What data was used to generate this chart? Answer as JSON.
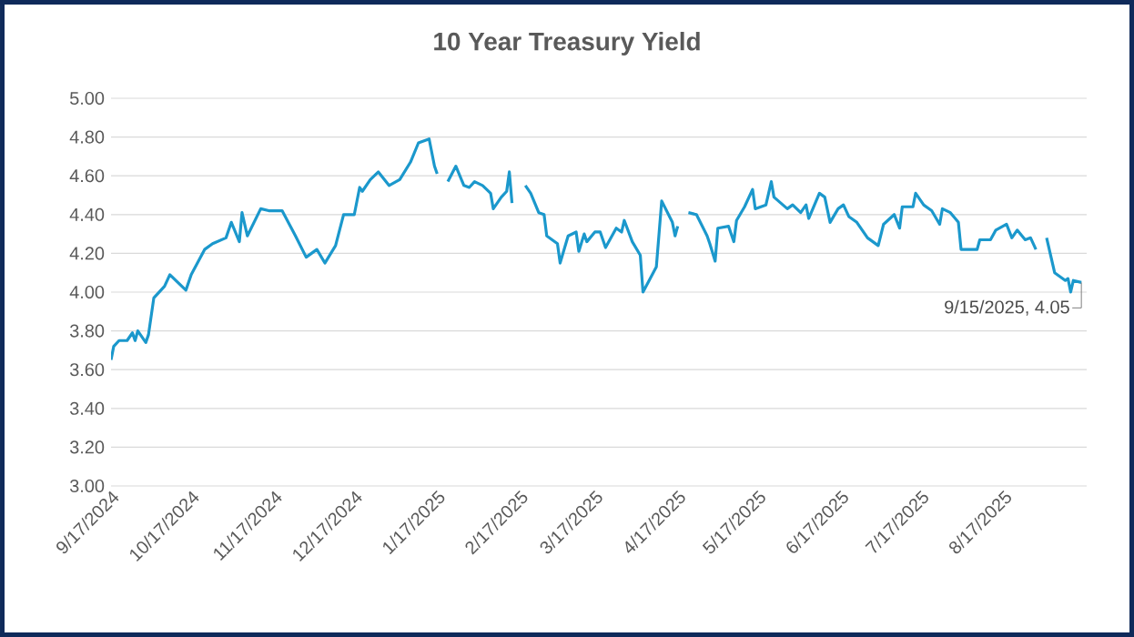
{
  "chart_data": {
    "type": "line",
    "title": "10 Year Treasury Yield",
    "x": [
      "2024-09-17",
      "2024-09-18",
      "2024-09-20",
      "2024-09-23",
      "2024-09-25",
      "2024-09-26",
      "2024-09-27",
      "2024-09-30",
      "2024-10-01",
      "2024-10-03",
      "2024-10-07",
      "2024-10-09",
      "2024-10-15",
      "2024-10-17",
      "2024-10-22",
      "2024-10-25",
      "2024-10-30",
      "2024-11-01",
      "2024-11-04",
      "2024-11-05",
      "2024-11-07",
      "2024-11-12",
      "2024-11-15",
      "2024-11-20",
      "2024-11-25",
      "2024-11-29",
      "2024-12-03",
      "2024-12-06",
      "2024-12-10",
      "2024-12-13",
      "2024-12-17",
      "2024-12-19",
      "2024-12-20",
      "2024-12-23",
      "2024-12-26",
      "2024-12-30",
      "2025-01-03",
      "2025-01-07",
      "2025-01-10",
      "2025-01-14",
      "2025-01-16",
      "2025-01-17",
      "2025-01-20",
      "2025-01-21",
      "2025-01-24",
      "2025-01-27",
      "2025-01-29",
      "2025-01-31",
      "2025-02-03",
      "2025-02-06",
      "2025-02-07",
      "2025-02-10",
      "2025-02-12",
      "2025-02-13",
      "2025-02-14",
      "2025-02-17",
      "2025-02-19",
      "2025-02-21",
      "2025-02-24",
      "2025-02-26",
      "2025-02-27",
      "2025-03-03",
      "2025-03-04",
      "2025-03-07",
      "2025-03-10",
      "2025-03-11",
      "2025-03-13",
      "2025-03-14",
      "2025-03-17",
      "2025-03-19",
      "2025-03-21",
      "2025-03-25",
      "2025-03-27",
      "2025-03-28",
      "2025-03-31",
      "2025-04-03",
      "2025-04-04",
      "2025-04-09",
      "2025-04-11",
      "2025-04-15",
      "2025-04-16",
      "2025-04-17",
      "2025-04-18",
      "2025-04-21",
      "2025-04-24",
      "2025-04-28",
      "2025-04-29",
      "2025-05-01",
      "2025-05-02",
      "2025-05-06",
      "2025-05-08",
      "2025-05-09",
      "2025-05-12",
      "2025-05-15",
      "2025-05-16",
      "2025-05-20",
      "2025-05-22",
      "2025-05-23",
      "2025-05-28",
      "2025-05-30",
      "2025-06-02",
      "2025-06-04",
      "2025-06-05",
      "2025-06-09",
      "2025-06-11",
      "2025-06-13",
      "2025-06-16",
      "2025-06-18",
      "2025-06-20",
      "2025-06-23",
      "2025-06-27",
      "2025-07-01",
      "2025-07-03",
      "2025-07-07",
      "2025-07-09",
      "2025-07-10",
      "2025-07-14",
      "2025-07-15",
      "2025-07-18",
      "2025-07-21",
      "2025-07-24",
      "2025-07-25",
      "2025-07-28",
      "2025-07-31",
      "2025-08-01",
      "2025-08-07",
      "2025-08-08",
      "2025-08-12",
      "2025-08-14",
      "2025-08-18",
      "2025-08-20",
      "2025-08-22",
      "2025-08-25",
      "2025-08-27",
      "2025-08-29",
      "2025-09-01",
      "2025-09-02",
      "2025-09-05",
      "2025-09-09",
      "2025-09-10",
      "2025-09-11",
      "2025-09-12",
      "2025-09-15"
    ],
    "series": [
      {
        "color": "#1b98cc",
        "values": [
          3.65,
          3.72,
          3.75,
          3.75,
          3.79,
          3.75,
          3.8,
          3.74,
          3.78,
          3.97,
          4.03,
          4.09,
          4.01,
          4.09,
          4.22,
          4.25,
          4.28,
          4.36,
          4.26,
          4.41,
          4.29,
          4.43,
          4.42,
          4.42,
          4.29,
          4.18,
          4.22,
          4.15,
          4.24,
          4.4,
          4.4,
          4.54,
          4.52,
          4.58,
          4.62,
          4.55,
          4.58,
          4.67,
          4.77,
          4.79,
          4.65,
          4.61,
          null,
          4.57,
          4.65,
          4.55,
          4.54,
          4.57,
          4.55,
          4.51,
          4.43,
          4.49,
          4.52,
          4.62,
          4.46,
          null,
          4.55,
          4.51,
          4.41,
          4.4,
          4.29,
          4.25,
          4.15,
          4.29,
          4.31,
          4.21,
          4.3,
          4.26,
          4.31,
          4.31,
          4.23,
          4.33,
          4.31,
          4.37,
          4.26,
          4.19,
          4.0,
          4.13,
          4.47,
          4.36,
          4.29,
          4.34,
          null,
          4.41,
          4.4,
          4.29,
          4.25,
          4.16,
          4.33,
          4.34,
          4.26,
          4.37,
          4.44,
          4.53,
          4.43,
          4.45,
          4.57,
          4.49,
          4.43,
          4.45,
          4.41,
          4.45,
          4.38,
          4.51,
          4.49,
          4.36,
          4.43,
          4.45,
          4.39,
          4.36,
          4.28,
          4.24,
          4.35,
          4.4,
          4.33,
          4.44,
          4.44,
          4.51,
          4.45,
          4.42,
          4.35,
          4.43,
          4.41,
          4.36,
          4.22,
          4.22,
          4.27,
          4.27,
          4.32,
          4.35,
          4.28,
          4.32,
          4.27,
          4.28,
          4.22,
          null,
          4.28,
          4.1,
          4.06,
          4.07,
          4.0,
          4.06,
          4.05
        ]
      }
    ],
    "xlim": [
      "2024-09-17",
      "2025-09-17"
    ],
    "xticks": [
      {
        "value": "2024-09-17",
        "label": "9/17/2024"
      },
      {
        "value": "2024-10-17",
        "label": "10/17/2024"
      },
      {
        "value": "2024-11-17",
        "label": "11/17/2024"
      },
      {
        "value": "2024-12-17",
        "label": "12/17/2024"
      },
      {
        "value": "2025-01-17",
        "label": "1/17/2025"
      },
      {
        "value": "2025-02-17",
        "label": "2/17/2025"
      },
      {
        "value": "2025-03-17",
        "label": "3/17/2025"
      },
      {
        "value": "2025-04-17",
        "label": "4/17/2025"
      },
      {
        "value": "2025-05-17",
        "label": "5/17/2025"
      },
      {
        "value": "2025-06-17",
        "label": "6/17/2025"
      },
      {
        "value": "2025-07-17",
        "label": "7/17/2025"
      },
      {
        "value": "2025-08-17",
        "label": "8/17/2025"
      }
    ],
    "ylim": [
      3,
      5
    ],
    "yticks": [
      {
        "value": 3,
        "label": "3.00"
      },
      {
        "value": 3.2,
        "label": "3.20"
      },
      {
        "value": 3.4,
        "label": "3.40"
      },
      {
        "value": 3.6,
        "label": "3.60"
      },
      {
        "value": 3.8,
        "label": "3.80"
      },
      {
        "value": 4,
        "label": "4.00"
      },
      {
        "value": 4.2,
        "label": "4.20"
      },
      {
        "value": 4.4,
        "label": "4.40"
      },
      {
        "value": 4.6,
        "label": "4.60"
      },
      {
        "value": 4.8,
        "label": "4.80"
      },
      {
        "value": 5,
        "label": "5.00"
      }
    ],
    "grid": "y",
    "annotations": [
      {
        "text": "9/15/2025, 4.05",
        "x": "2025-09-15",
        "y": 4.05
      }
    ]
  }
}
